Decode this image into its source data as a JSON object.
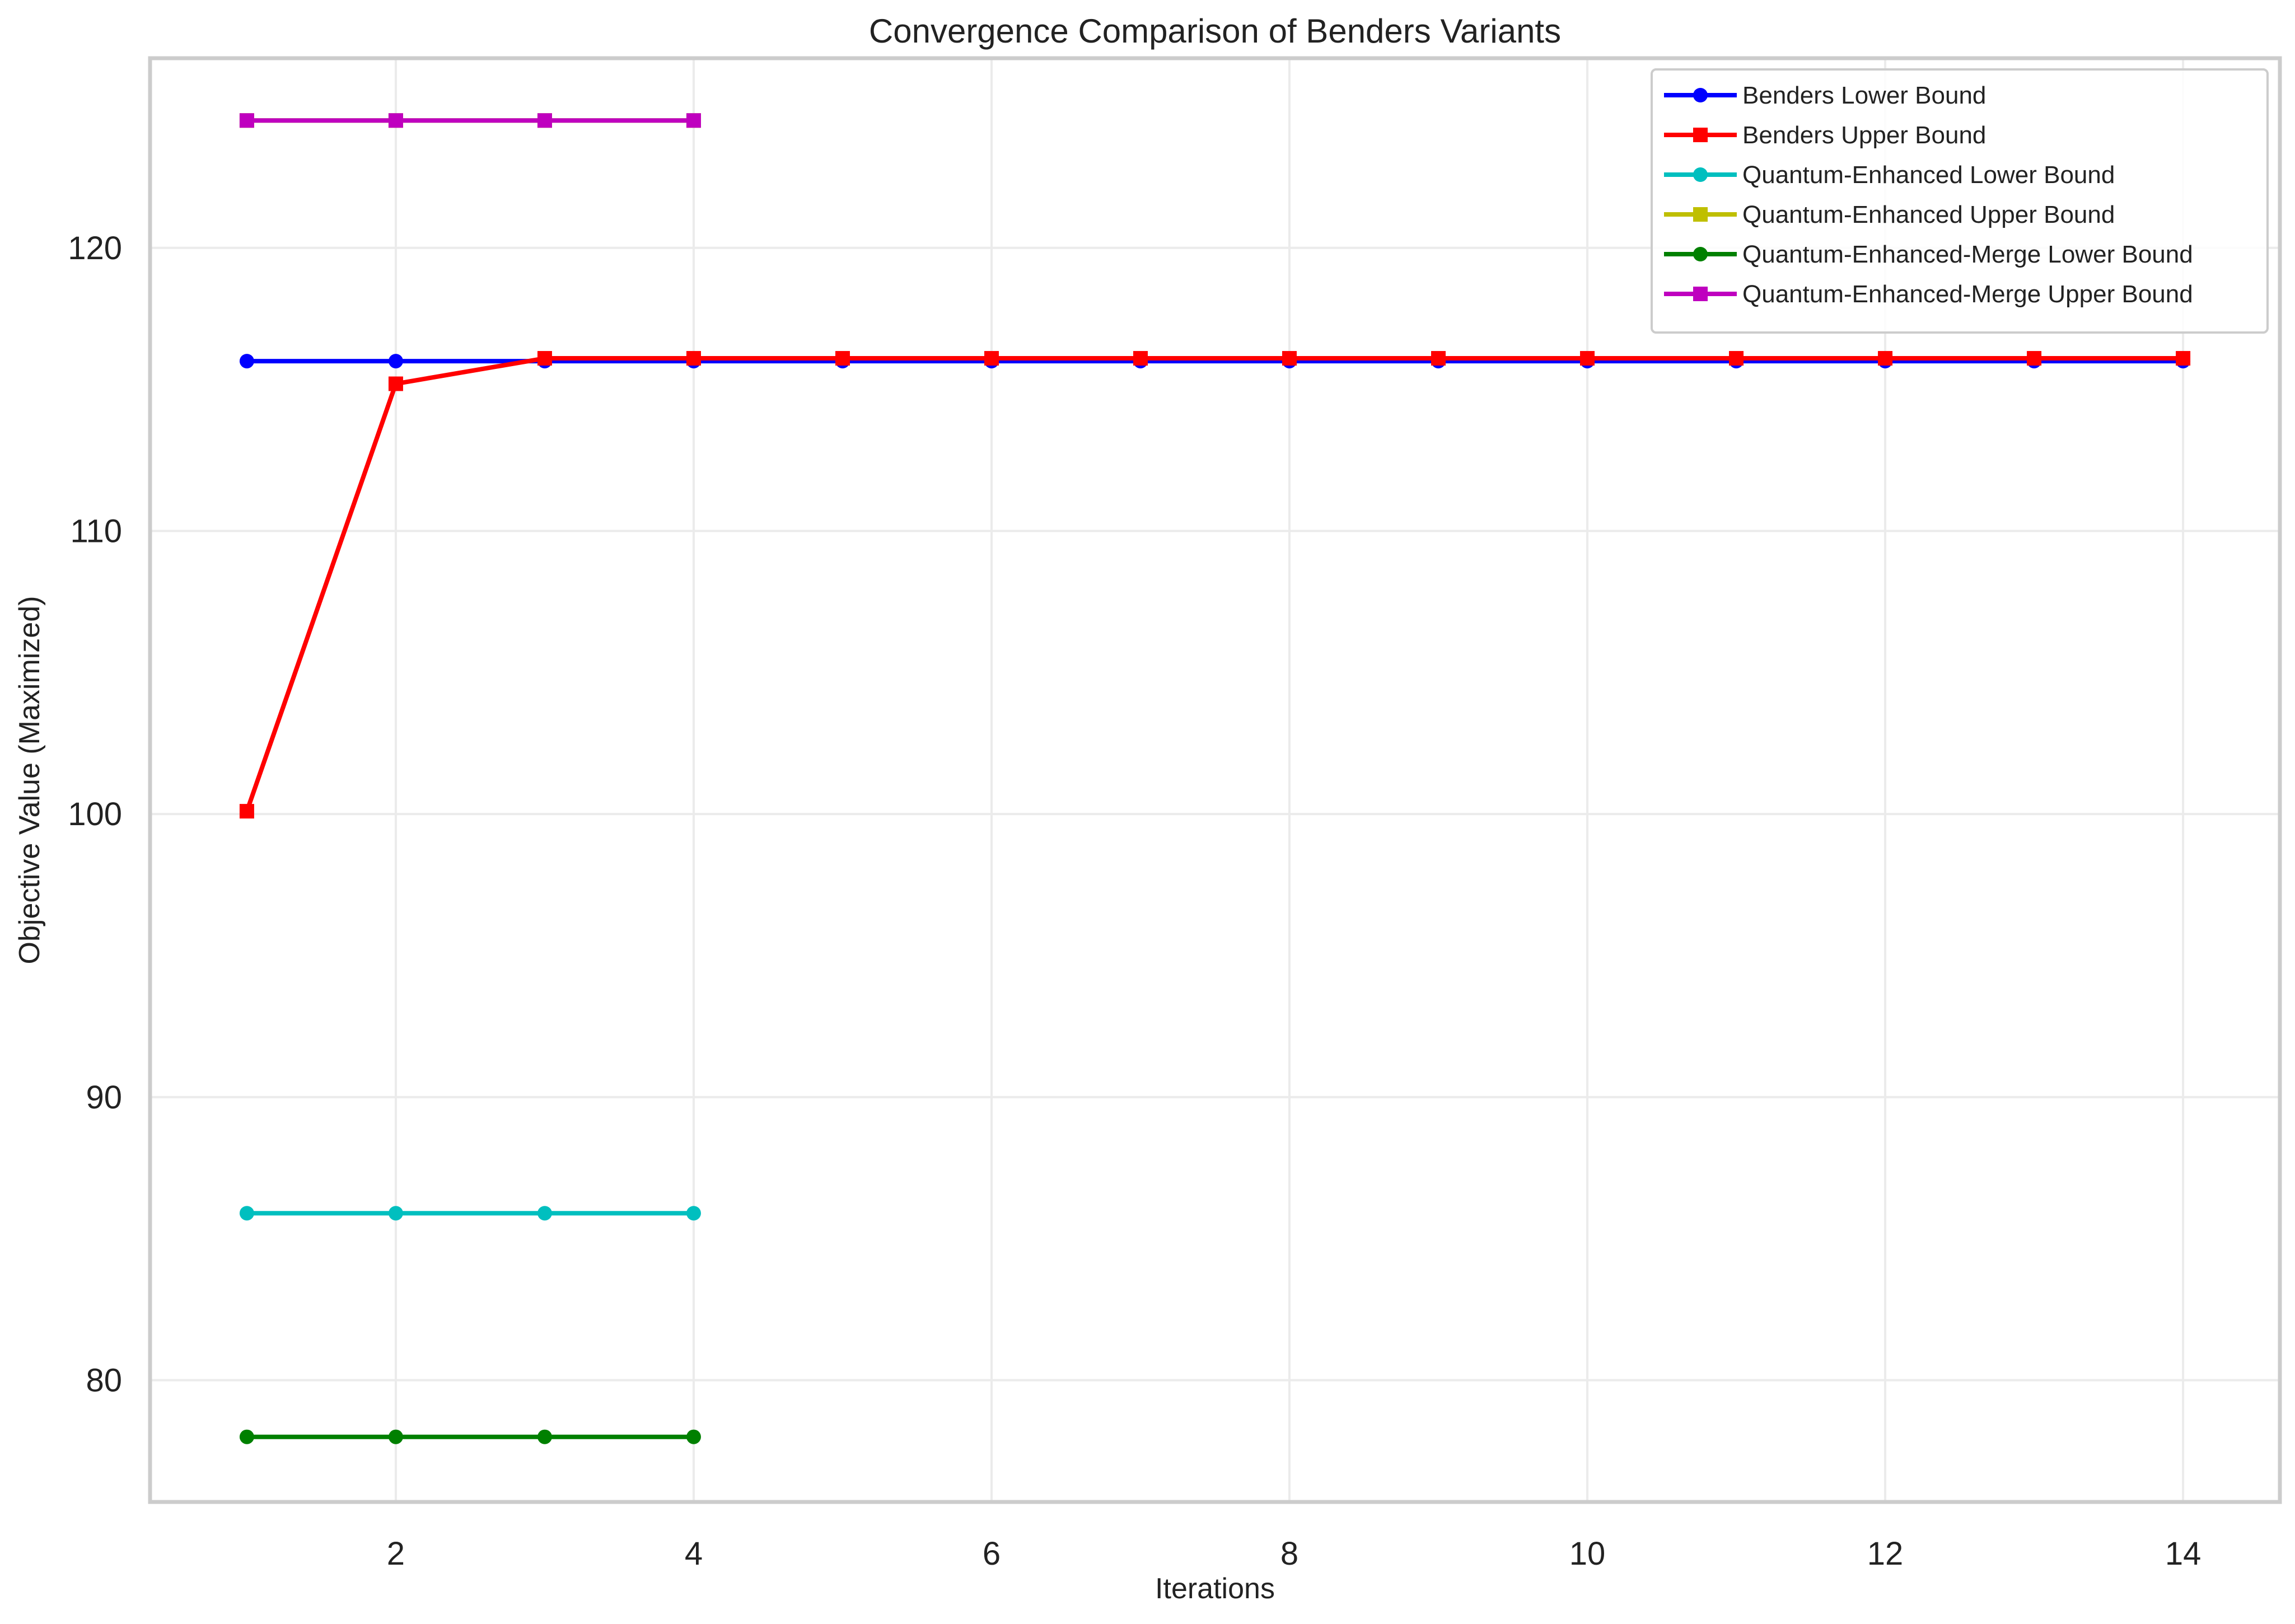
{
  "chart_data": {
    "type": "line",
    "title": "Convergence Comparison of Benders Variants",
    "xlabel": "Iterations",
    "ylabel": "Objective Value (Maximized)",
    "xlim": [
      0.35,
      14.65
    ],
    "ylim": [
      75.7,
      126.7
    ],
    "xticks": [
      2,
      4,
      6,
      8,
      10,
      12,
      14
    ],
    "yticks": [
      80,
      90,
      100,
      110,
      120
    ],
    "grid": true,
    "legend_position": "top-right",
    "series": [
      {
        "name": "Benders Lower Bound",
        "color": "#0000ff",
        "marker": "circle",
        "x": [
          1,
          2,
          3,
          4,
          5,
          6,
          7,
          8,
          9,
          10,
          11,
          12,
          13,
          14
        ],
        "y": [
          116.0,
          116.0,
          116.0,
          116.0,
          116.0,
          116.0,
          116.0,
          116.0,
          116.0,
          116.0,
          116.0,
          116.0,
          116.0,
          116.0
        ]
      },
      {
        "name": "Benders Upper Bound",
        "color": "#ff0000",
        "marker": "square",
        "x": [
          1,
          2,
          3,
          4,
          5,
          6,
          7,
          8,
          9,
          10,
          11,
          12,
          13,
          14
        ],
        "y": [
          100.1,
          115.2,
          116.1,
          116.1,
          116.1,
          116.1,
          116.1,
          116.1,
          116.1,
          116.1,
          116.1,
          116.1,
          116.1,
          116.1
        ]
      },
      {
        "name": "Quantum-Enhanced Lower Bound",
        "color": "#00bfbf",
        "marker": "circle",
        "x": [
          1,
          2,
          3,
          4
        ],
        "y": [
          85.9,
          85.9,
          85.9,
          85.9
        ]
      },
      {
        "name": "Quantum-Enhanced Upper Bound",
        "color": "#bfbf00",
        "marker": "square",
        "x": [
          1,
          2,
          3,
          4
        ],
        "y": [
          124.5,
          124.5,
          124.5,
          124.5
        ]
      },
      {
        "name": "Quantum-Enhanced-Merge Lower Bound",
        "color": "#008000",
        "marker": "circle",
        "x": [
          1,
          2,
          3,
          4
        ],
        "y": [
          78.0,
          78.0,
          78.0,
          78.0
        ]
      },
      {
        "name": "Quantum-Enhanced-Merge Upper Bound",
        "color": "#bf00bf",
        "marker": "square",
        "x": [
          1,
          2,
          3,
          4
        ],
        "y": [
          124.5,
          124.5,
          124.5,
          124.5
        ]
      }
    ]
  }
}
